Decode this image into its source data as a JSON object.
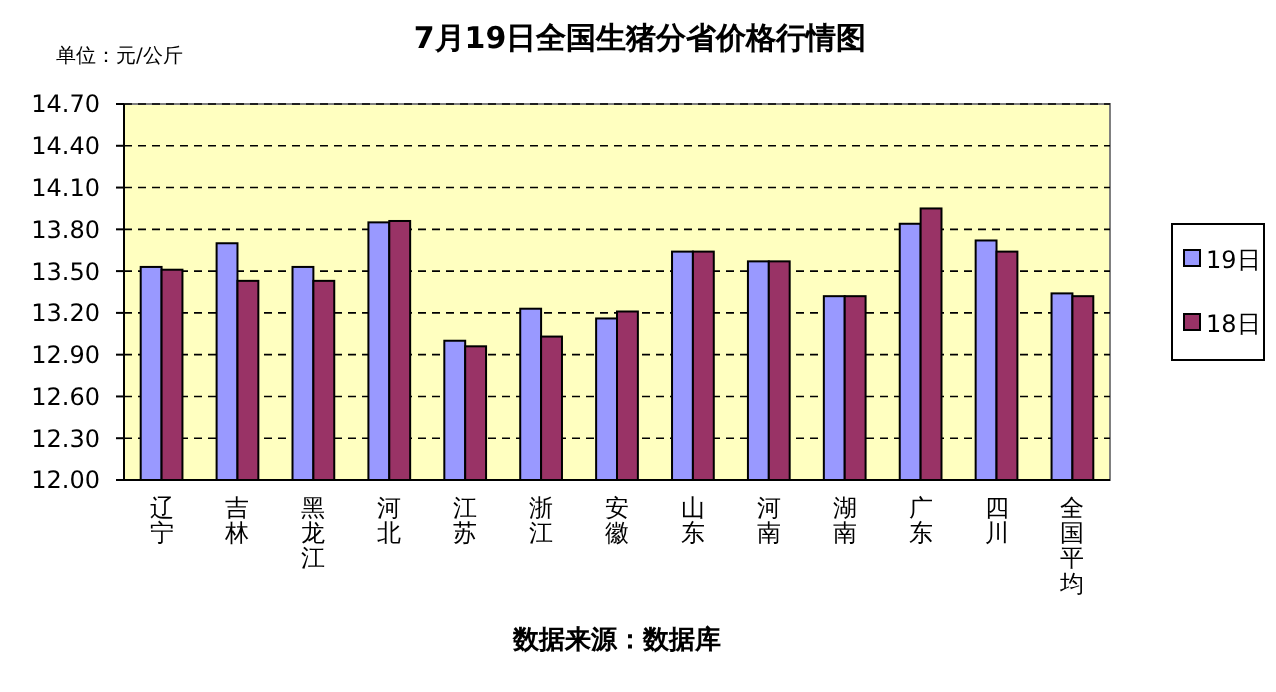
{
  "chart_data": {
    "type": "bar",
    "title": "7月19日全国生猪分省价格行情图",
    "annotations": [
      "单位：元/公斤",
      "数据来源：数据库"
    ],
    "categories": [
      "辽宁",
      "吉林",
      "黑龙江",
      "河北",
      "江苏",
      "浙江",
      "安徽",
      "山东",
      "河南",
      "湖南",
      "广东",
      "四川",
      "全国平均"
    ],
    "series": [
      {
        "name": "19日",
        "color": "#9999ff",
        "values": [
          13.53,
          13.7,
          13.53,
          13.85,
          13.0,
          13.23,
          13.16,
          13.64,
          13.57,
          13.32,
          13.84,
          13.72,
          13.34
        ]
      },
      {
        "name": "18日",
        "color": "#993366",
        "values": [
          13.51,
          13.43,
          13.43,
          13.86,
          12.96,
          13.03,
          13.21,
          13.64,
          13.57,
          13.32,
          13.95,
          13.64,
          13.32
        ]
      }
    ],
    "ylim": [
      12.0,
      14.7
    ],
    "yticks": [
      {
        "value": 12.0,
        "label": "12.00"
      },
      {
        "value": 12.3,
        "label": "12.30"
      },
      {
        "value": 12.6,
        "label": "12.60"
      },
      {
        "value": 12.9,
        "label": "12.90"
      },
      {
        "value": 13.2,
        "label": "13.20"
      },
      {
        "value": 13.5,
        "label": "13.50"
      },
      {
        "value": 13.8,
        "label": "13.80"
      },
      {
        "value": 14.1,
        "label": "14.10"
      },
      {
        "value": 14.4,
        "label": "14.40"
      },
      {
        "value": 14.7,
        "label": "14.70"
      }
    ],
    "grid": "y",
    "legend": "right"
  }
}
